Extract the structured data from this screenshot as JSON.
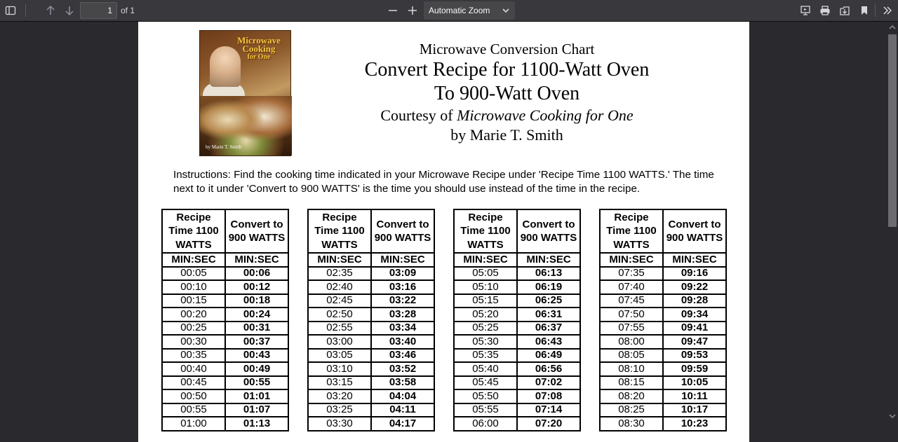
{
  "toolbar": {
    "page_number": "1",
    "page_of": "of 1",
    "zoom_label": "Automatic Zoom"
  },
  "cover": {
    "title_line1": "Microwave",
    "title_line2": "Cooking",
    "title_line3": "for One",
    "author": "by Marie T. Smith"
  },
  "heading": {
    "line1": "Microwave Conversion Chart",
    "line2": "Convert Recipe for 1100-Watt Oven",
    "line3": "To 900-Watt Oven",
    "line4_prefix": "Courtesy of ",
    "line4_title": "Microwave Cooking for One",
    "line5": "by Marie T. Smith"
  },
  "instructions": "Instructions:  Find the cooking time indicated in your Microwave Recipe under 'Recipe Time 1100 WATTS.' The time next to it under 'Convert to 900 WATTS' is the time you should use instead of the time in the recipe.",
  "table_headers": {
    "col1": "Recipe Time 1100 WATTS",
    "col2": "Convert to 900 WATTS",
    "unit": "MIN:SEC"
  },
  "tables": [
    {
      "rows": [
        [
          "00:05",
          "00:06"
        ],
        [
          "00:10",
          "00:12"
        ],
        [
          "00:15",
          "00:18"
        ],
        [
          "00:20",
          "00:24"
        ],
        [
          "00:25",
          "00:31"
        ],
        [
          "00:30",
          "00:37"
        ],
        [
          "00:35",
          "00:43"
        ],
        [
          "00:40",
          "00:49"
        ],
        [
          "00:45",
          "00:55"
        ],
        [
          "00:50",
          "01:01"
        ],
        [
          "00:55",
          "01:07"
        ],
        [
          "01:00",
          "01:13"
        ]
      ]
    },
    {
      "rows": [
        [
          "02:35",
          "03:09"
        ],
        [
          "02:40",
          "03:16"
        ],
        [
          "02:45",
          "03:22"
        ],
        [
          "02:50",
          "03:28"
        ],
        [
          "02:55",
          "03:34"
        ],
        [
          "03:00",
          "03:40"
        ],
        [
          "03:05",
          "03:46"
        ],
        [
          "03:10",
          "03:52"
        ],
        [
          "03:15",
          "03:58"
        ],
        [
          "03:20",
          "04:04"
        ],
        [
          "03:25",
          "04:11"
        ],
        [
          "03:30",
          "04:17"
        ]
      ]
    },
    {
      "rows": [
        [
          "05:05",
          "06:13"
        ],
        [
          "05:10",
          "06:19"
        ],
        [
          "05:15",
          "06:25"
        ],
        [
          "05:20",
          "06:31"
        ],
        [
          "05:25",
          "06:37"
        ],
        [
          "05:30",
          "06:43"
        ],
        [
          "05:35",
          "06:49"
        ],
        [
          "05:40",
          "06:56"
        ],
        [
          "05:45",
          "07:02"
        ],
        [
          "05:50",
          "07:08"
        ],
        [
          "05:55",
          "07:14"
        ],
        [
          "06:00",
          "07:20"
        ]
      ]
    },
    {
      "rows": [
        [
          "07:35",
          "09:16"
        ],
        [
          "07:40",
          "09:22"
        ],
        [
          "07:45",
          "09:28"
        ],
        [
          "07:50",
          "09:34"
        ],
        [
          "07:55",
          "09:41"
        ],
        [
          "08:00",
          "09:47"
        ],
        [
          "08:05",
          "09:53"
        ],
        [
          "08:10",
          "09:59"
        ],
        [
          "08:15",
          "10:05"
        ],
        [
          "08:20",
          "10:11"
        ],
        [
          "08:25",
          "10:17"
        ],
        [
          "08:30",
          "10:23"
        ]
      ]
    }
  ]
}
